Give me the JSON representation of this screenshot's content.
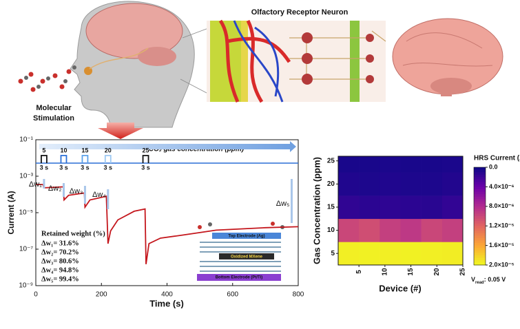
{
  "illustration": {
    "title": "Olfactory Receptor Neuron",
    "caption": [
      "Molecular",
      "Stimulation"
    ]
  },
  "chart_data": [
    {
      "type": "line",
      "xlabel": "Time (s)",
      "ylabel": "Current (A)",
      "log_y": true,
      "xlim": [
        0,
        800
      ],
      "xticks": [
        0,
        200,
        400,
        600,
        800
      ],
      "ylim": [
        1e-09,
        0.1
      ],
      "yticks": [
        {
          "value": 0.1,
          "label": "10⁻¹"
        },
        {
          "value": 0.001,
          "label": "10⁻³"
        },
        {
          "value": 1e-05,
          "label": "10⁻⁵"
        },
        {
          "value": 1e-07,
          "label": "10⁻⁷"
        },
        {
          "value": 1e-09,
          "label": "10⁻⁹"
        }
      ],
      "series": [
        {
          "color": "#c4161c",
          "x": [
            0,
            22,
            24,
            84,
            86,
            100,
            148,
            150,
            165,
            215,
            220,
            228,
            250,
            300,
            333,
            336,
            345,
            380,
            450,
            550,
            700,
            800
          ],
          "values": [
            0.00035,
            0.00035,
            0.00023,
            0.00026,
            5e-05,
            9e-05,
            0.00012,
            2e-05,
            5e-05,
            8e-05,
            2e-07,
            1e-06,
            4e-06,
            1.2e-05,
            1.6e-05,
            1.5e-08,
            2e-07,
            4e-07,
            6e-07,
            1.1e-06,
            1.5e-06,
            1.7e-06
          ]
        }
      ],
      "pulses": {
        "label": "CO₂ gas concentration (ppm)",
        "times": [
          25,
          85,
          150,
          220,
          335
        ],
        "concentrations": [
          5,
          10,
          15,
          20,
          25
        ],
        "duration": "3 s",
        "colors": [
          "#111111",
          "#2a6fd6",
          "#5aa0e8",
          "#9cc8f2",
          "#111111"
        ]
      },
      "delta_labels": [
        "Δw₁",
        "Δw₂",
        "Δw₃",
        "Δw₄",
        "Δw₅"
      ],
      "retained": {
        "title": "Retained weight (%)",
        "items": [
          "Δw₁= 31.6%",
          "Δw₂= 70.2%",
          "Δw₃= 80.6%",
          "Δw₄= 94.8%",
          "Δw₅= 99.4%"
        ]
      },
      "inset": {
        "top": "Top Electrode (Ag)",
        "middle": "Oxidized MXene",
        "bottom": "Bottom Electrode (Pt/Ti)"
      }
    },
    {
      "type": "heatmap",
      "xlabel": "Device (#)",
      "ylabel": "Gas Concentration (ppm)",
      "xlim": [
        1,
        25
      ],
      "xticks": [
        5,
        10,
        15,
        20,
        25
      ],
      "ylim": [
        2.5,
        26
      ],
      "yticks": [
        5,
        10,
        15,
        20,
        25
      ],
      "xbins": [
        1,
        5,
        9,
        13,
        17,
        21,
        25
      ],
      "y": [
        5,
        10,
        15,
        20,
        25
      ],
      "values": [
        [
          1.95e-05,
          1.96e-05,
          1.95e-05,
          1.96e-05,
          1.95e-05,
          1.94e-05
        ],
        [
          1e-05,
          1.05e-05,
          9.5e-06,
          9e-06,
          1e-05,
          9.5e-06
        ],
        [
          1.5e-06,
          1.3e-06,
          1.4e-06,
          1.3e-06,
          1.2e-06,
          1.6e-06
        ],
        [
          8e-07,
          7e-07,
          8e-07,
          7e-07,
          7e-07,
          9e-07
        ],
        [
          5e-07,
          5e-07,
          6e-07,
          5e-07,
          5e-07,
          6e-07
        ]
      ],
      "colormap": "plasma_r",
      "clim": [
        0,
        2e-05
      ],
      "colorbar": {
        "title": "HRS Current (A)",
        "ticks": [
          {
            "value": 0,
            "label": "0.0"
          },
          {
            "value": 4e-06,
            "label": "4.0×10⁻⁶"
          },
          {
            "value": 8e-06,
            "label": "8.0×10⁻⁶"
          },
          {
            "value": 1.2e-05,
            "label": "1.2×10⁻⁵"
          },
          {
            "value": 1.6e-05,
            "label": "1.6×10⁻⁵"
          },
          {
            "value": 2e-05,
            "label": "2.0×10⁻⁵"
          }
        ]
      },
      "annotation": {
        "symbol": "V",
        "subscript": "read",
        "text": ": 0.05 V"
      }
    }
  ]
}
